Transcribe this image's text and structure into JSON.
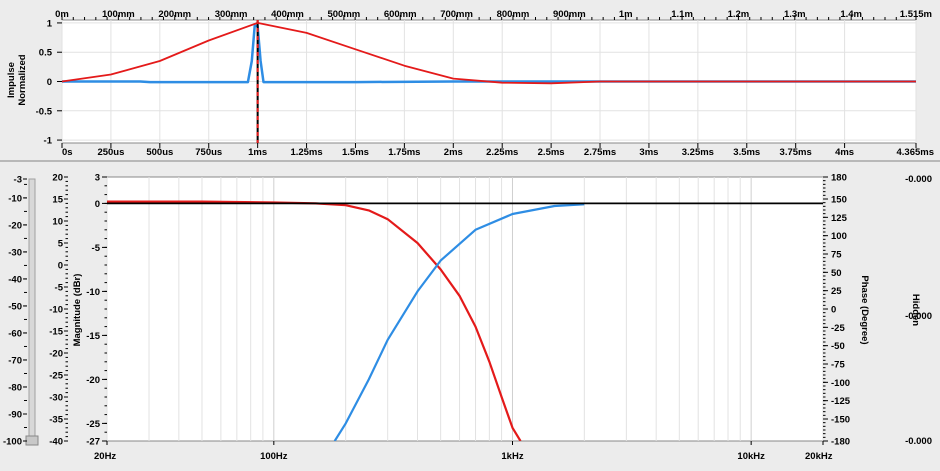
{
  "colors": {
    "red": "#e41a1a",
    "blue": "#2e8de4",
    "black": "#000000",
    "hidden_label": "#1e64d2",
    "plot_bg": "#ffffff",
    "panel_bg": "#ececec",
    "grid": "#e2e2e2"
  },
  "icons": [
    "slider-handle-icon"
  ],
  "chart_data": [
    {
      "id": "impulse",
      "type": "line",
      "ylabel": [
        "Impulse",
        "Normalized"
      ],
      "top_axis_ticks": [
        "0m",
        "100mm",
        "200mm",
        "300mm",
        "400mm",
        "500mm",
        "600mm",
        "700mm",
        "800mm",
        "900mm",
        "1m",
        "1.1m",
        "1.2m",
        "1.3m",
        "1.4m",
        "1.515m"
      ],
      "bottom_axis_ticks": [
        "0s",
        "250us",
        "500us",
        "750us",
        "1ms",
        "1.25ms",
        "1.5ms",
        "1.75ms",
        "2ms",
        "2.25ms",
        "2.5ms",
        "2.75ms",
        "3ms",
        "3.25ms",
        "3.5ms",
        "3.75ms",
        "4ms",
        "4.365ms"
      ],
      "y_ticks": [
        "1",
        "0.5",
        "0",
        "-0.5",
        "-1"
      ],
      "xlim_ms": [
        0,
        4.365
      ],
      "ylim": [
        -1.05,
        1.05
      ],
      "series": [
        {
          "color": "red",
          "points": [
            [
              0,
              0
            ],
            [
              0.25,
              0.12
            ],
            [
              0.5,
              0.35
            ],
            [
              0.75,
              0.7
            ],
            [
              1.0,
              1.0
            ],
            [
              1.25,
              0.83
            ],
            [
              1.5,
              0.55
            ],
            [
              1.75,
              0.27
            ],
            [
              2.0,
              0.05
            ],
            [
              2.25,
              -0.02
            ],
            [
              2.5,
              -0.03
            ],
            [
              2.75,
              0.0
            ],
            [
              3.0,
              0.0
            ],
            [
              3.5,
              0.0
            ],
            [
              4.0,
              0.0
            ],
            [
              4.365,
              0.0
            ]
          ]
        },
        {
          "color": "blue",
          "points": [
            [
              0,
              0
            ],
            [
              0.4,
              0.0
            ],
            [
              0.45,
              -0.01
            ],
            [
              0.95,
              -0.01
            ],
            [
              0.97,
              0.35
            ],
            [
              0.985,
              0.95
            ],
            [
              1.0,
              0.95
            ],
            [
              1.015,
              0.35
            ],
            [
              1.03,
              -0.01
            ],
            [
              1.5,
              -0.01
            ],
            [
              2.0,
              0.0
            ],
            [
              4.365,
              0.0
            ]
          ]
        }
      ],
      "marker": {
        "x": 1.0,
        "color": "black",
        "dashed_color": "red"
      }
    },
    {
      "id": "frequency",
      "type": "line",
      "xscale": "log",
      "xlim": [
        20,
        20000
      ],
      "x_ticks": [
        "20Hz",
        "100Hz",
        "1kHz",
        "10kHz",
        "20kHz"
      ],
      "ylabel_left": "Magnitude (dBr)",
      "ylabel_right": "Phase (Degree)",
      "ylabel_hidden": "Hidden",
      "y_left_ticks": [
        "3",
        "0",
        "-5",
        "-10",
        "-15",
        "-20",
        "-25",
        "-27"
      ],
      "ylim_left": [
        -27,
        3
      ],
      "y_right_ticks": [
        "180",
        "150",
        "125",
        "100",
        "75",
        "50",
        "25",
        "0",
        "-25",
        "-50",
        "-75",
        "-100",
        "-125",
        "-150",
        "-180"
      ],
      "ylim_right": [
        -180,
        180
      ],
      "slider_ticks": [
        "-3",
        "-10",
        "-20",
        "-30",
        "-40",
        "-50",
        "-60",
        "-70",
        "-80",
        "-90",
        "-100"
      ],
      "scale_ticks": [
        "20",
        "15",
        "10",
        "5",
        "0",
        "-5",
        "-10",
        "-15",
        "-20",
        "-25",
        "-30",
        "-35",
        "-40"
      ],
      "hidden_values": [
        "-0.000",
        "-0.000",
        "-0.000"
      ],
      "series": [
        {
          "color": "red",
          "name": "",
          "points": [
            [
              20,
              0.2
            ],
            [
              50,
              0.2
            ],
            [
              100,
              0.1
            ],
            [
              150,
              0.0
            ],
            [
              200,
              -0.2
            ],
            [
              250,
              -0.8
            ],
            [
              300,
              -1.8
            ],
            [
              400,
              -4.5
            ],
            [
              500,
              -7.5
            ],
            [
              600,
              -10.5
            ],
            [
              700,
              -14
            ],
            [
              800,
              -18
            ],
            [
              900,
              -22
            ],
            [
              1000,
              -25.5
            ],
            [
              1080,
              -27
            ]
          ]
        },
        {
          "color": "blue",
          "name": "",
          "points": [
            [
              180,
              -27
            ],
            [
              200,
              -25
            ],
            [
              250,
              -20
            ],
            [
              300,
              -15.5
            ],
            [
              400,
              -10
            ],
            [
              500,
              -6.5
            ],
            [
              700,
              -3
            ],
            [
              1000,
              -1.2
            ],
            [
              1500,
              -0.3
            ],
            [
              2000,
              -0.1
            ]
          ]
        },
        {
          "color": "black",
          "name": "",
          "points": [
            [
              20,
              0
            ],
            [
              20000,
              0
            ]
          ]
        }
      ]
    }
  ]
}
